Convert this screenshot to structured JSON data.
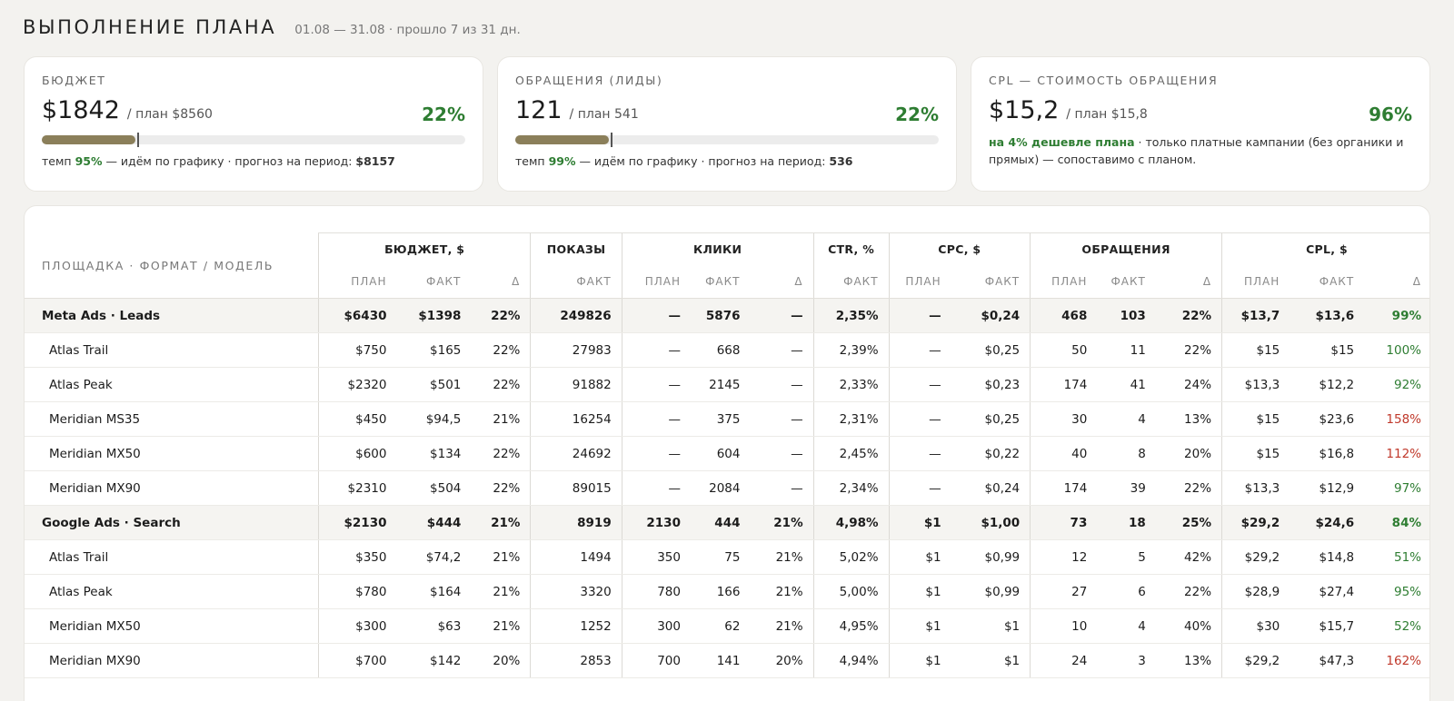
{
  "header": {
    "title": "ВЫПОЛНЕНИЕ ПЛАНА",
    "subtitle": "01.08 — 31.08 · прошло 7 из 31 дн."
  },
  "cards": [
    {
      "label": "БЮДЖЕТ",
      "value": "$1842",
      "plan": "/ план $8560",
      "pct": "22%",
      "progress_fraction": 0.22,
      "schedule_fraction": 0.226,
      "note_pre": "темп ",
      "note_pace": "95%",
      "note_mid": " — идём по графику · прогноз на период: ",
      "note_forecast": "$8157"
    },
    {
      "label": "ОБРАЩЕНИЯ (ЛИДЫ)",
      "value": "121",
      "plan": "/ план 541",
      "pct": "22%",
      "progress_fraction": 0.22,
      "schedule_fraction": 0.226,
      "note_pre": "темп ",
      "note_pace": "99%",
      "note_mid": " — идём по графику · прогноз на период: ",
      "note_forecast": "536"
    },
    {
      "label": "CPL — СТОИМОСТЬ ОБРАЩЕНИЯ",
      "value": "$15,2",
      "plan": "/ план $15,8",
      "pct": "96%",
      "note_highlight": "на 4% дешевле плана",
      "note_rest": " · только платные кампании (без органики и прямых) — сопоставимо с планом."
    }
  ],
  "table": {
    "corner": "ПЛОЩАДКА · ФОРМАТ / МОДЕЛЬ",
    "groups": [
      "БЮДЖЕТ, $",
      "ПОКАЗЫ",
      "КЛИКИ",
      "CTR, %",
      "CPC, $",
      "ОБРАЩЕНИЯ",
      "CPL, $"
    ],
    "subheaders": [
      "ПЛАН",
      "ФАКТ",
      "Δ",
      "ФАКТ",
      "ПЛАН",
      "ФАКТ",
      "Δ",
      "ФАКТ",
      "ПЛАН",
      "ФАКТ",
      "ПЛАН",
      "ФАКТ",
      "Δ",
      "ПЛАН",
      "ФАКТ",
      "Δ"
    ],
    "rows": [
      {
        "group": true,
        "name": "Meta Ads · Leads",
        "cells": [
          "$6430",
          "$1398",
          "22%",
          "249826",
          "—",
          "5876",
          "—",
          "2,35%",
          "—",
          "$0,24",
          "468",
          "103",
          "22%",
          "$13,7",
          "$13,6",
          "99%"
        ],
        "cpl_status": "green"
      },
      {
        "group": false,
        "name": "Atlas Trail",
        "cells": [
          "$750",
          "$165",
          "22%",
          "27983",
          "—",
          "668",
          "—",
          "2,39%",
          "—",
          "$0,25",
          "50",
          "11",
          "22%",
          "$15",
          "$15",
          "100%"
        ],
        "cpl_status": "green"
      },
      {
        "group": false,
        "name": "Atlas Peak",
        "cells": [
          "$2320",
          "$501",
          "22%",
          "91882",
          "—",
          "2145",
          "—",
          "2,33%",
          "—",
          "$0,23",
          "174",
          "41",
          "24%",
          "$13,3",
          "$12,2",
          "92%"
        ],
        "cpl_status": "green"
      },
      {
        "group": false,
        "name": "Meridian MS35",
        "cells": [
          "$450",
          "$94,5",
          "21%",
          "16254",
          "—",
          "375",
          "—",
          "2,31%",
          "—",
          "$0,25",
          "30",
          "4",
          "13%",
          "$15",
          "$23,6",
          "158%"
        ],
        "cpl_status": "red"
      },
      {
        "group": false,
        "name": "Meridian MX50",
        "cells": [
          "$600",
          "$134",
          "22%",
          "24692",
          "—",
          "604",
          "—",
          "2,45%",
          "—",
          "$0,22",
          "40",
          "8",
          "20%",
          "$15",
          "$16,8",
          "112%"
        ],
        "cpl_status": "red"
      },
      {
        "group": false,
        "name": "Meridian MX90",
        "cells": [
          "$2310",
          "$504",
          "22%",
          "89015",
          "—",
          "2084",
          "—",
          "2,34%",
          "—",
          "$0,24",
          "174",
          "39",
          "22%",
          "$13,3",
          "$12,9",
          "97%"
        ],
        "cpl_status": "green"
      },
      {
        "group": true,
        "name": "Google Ads · Search",
        "cells": [
          "$2130",
          "$444",
          "21%",
          "8919",
          "2130",
          "444",
          "21%",
          "4,98%",
          "$1",
          "$1,00",
          "73",
          "18",
          "25%",
          "$29,2",
          "$24,6",
          "84%"
        ],
        "cpl_status": "green"
      },
      {
        "group": false,
        "name": "Atlas Trail",
        "cells": [
          "$350",
          "$74,2",
          "21%",
          "1494",
          "350",
          "75",
          "21%",
          "5,02%",
          "$1",
          "$0,99",
          "12",
          "5",
          "42%",
          "$29,2",
          "$14,8",
          "51%"
        ],
        "cpl_status": "green"
      },
      {
        "group": false,
        "name": "Atlas Peak",
        "cells": [
          "$780",
          "$164",
          "21%",
          "3320",
          "780",
          "166",
          "21%",
          "5,00%",
          "$1",
          "$0,99",
          "27",
          "6",
          "22%",
          "$28,9",
          "$27,4",
          "95%"
        ],
        "cpl_status": "green"
      },
      {
        "group": false,
        "name": "Meridian MX50",
        "cells": [
          "$300",
          "$63",
          "21%",
          "1252",
          "300",
          "62",
          "21%",
          "4,95%",
          "$1",
          "$1",
          "10",
          "4",
          "40%",
          "$30",
          "$15,7",
          "52%"
        ],
        "cpl_status": "green"
      },
      {
        "group": false,
        "name": "Meridian MX90",
        "cells": [
          "$700",
          "$142",
          "20%",
          "2853",
          "700",
          "141",
          "20%",
          "4,94%",
          "$1",
          "$1",
          "24",
          "3",
          "13%",
          "$29,2",
          "$47,3",
          "162%"
        ],
        "cpl_status": "red"
      }
    ]
  },
  "colors": {
    "accent_green": "#2e7d32",
    "accent_red": "#c0392b",
    "progress_fill": "#8b7f5a"
  }
}
